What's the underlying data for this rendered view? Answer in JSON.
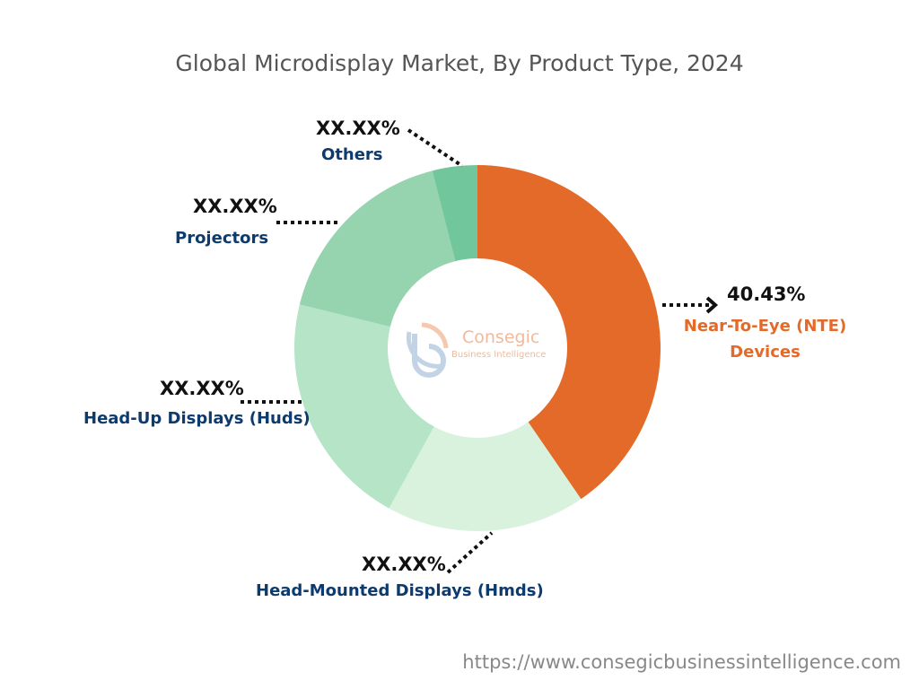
{
  "chart_data": {
    "type": "pie",
    "title": "Global Microdisplay Market, By Product Type, 2024",
    "donut": true,
    "slices": [
      {
        "name": "Near-To-Eye (NTE) Devices",
        "value": 40.43,
        "label": "40.43%",
        "color": "#e36a28"
      },
      {
        "name": "Head-Mounted Displays (Hmds)",
        "value": 17.6,
        "label": "XX.XX%",
        "color": "#d8f2dd"
      },
      {
        "name": "Head-Up Displays (Huds)",
        "value": 20.8,
        "label": "XX.XX%",
        "color": "#b5e4c6"
      },
      {
        "name": "Projectors",
        "value": 17.2,
        "label": "XX.XX%",
        "color": "#96d4b0"
      },
      {
        "name": "Others",
        "value": 3.97,
        "label": "XX.XX%",
        "color": "#72c69b"
      }
    ]
  },
  "logo": {
    "name": "Consegic",
    "tagline": "Business Intelligence"
  },
  "footer": {
    "url": "https://www.consegicbusinessintelligence.com"
  }
}
